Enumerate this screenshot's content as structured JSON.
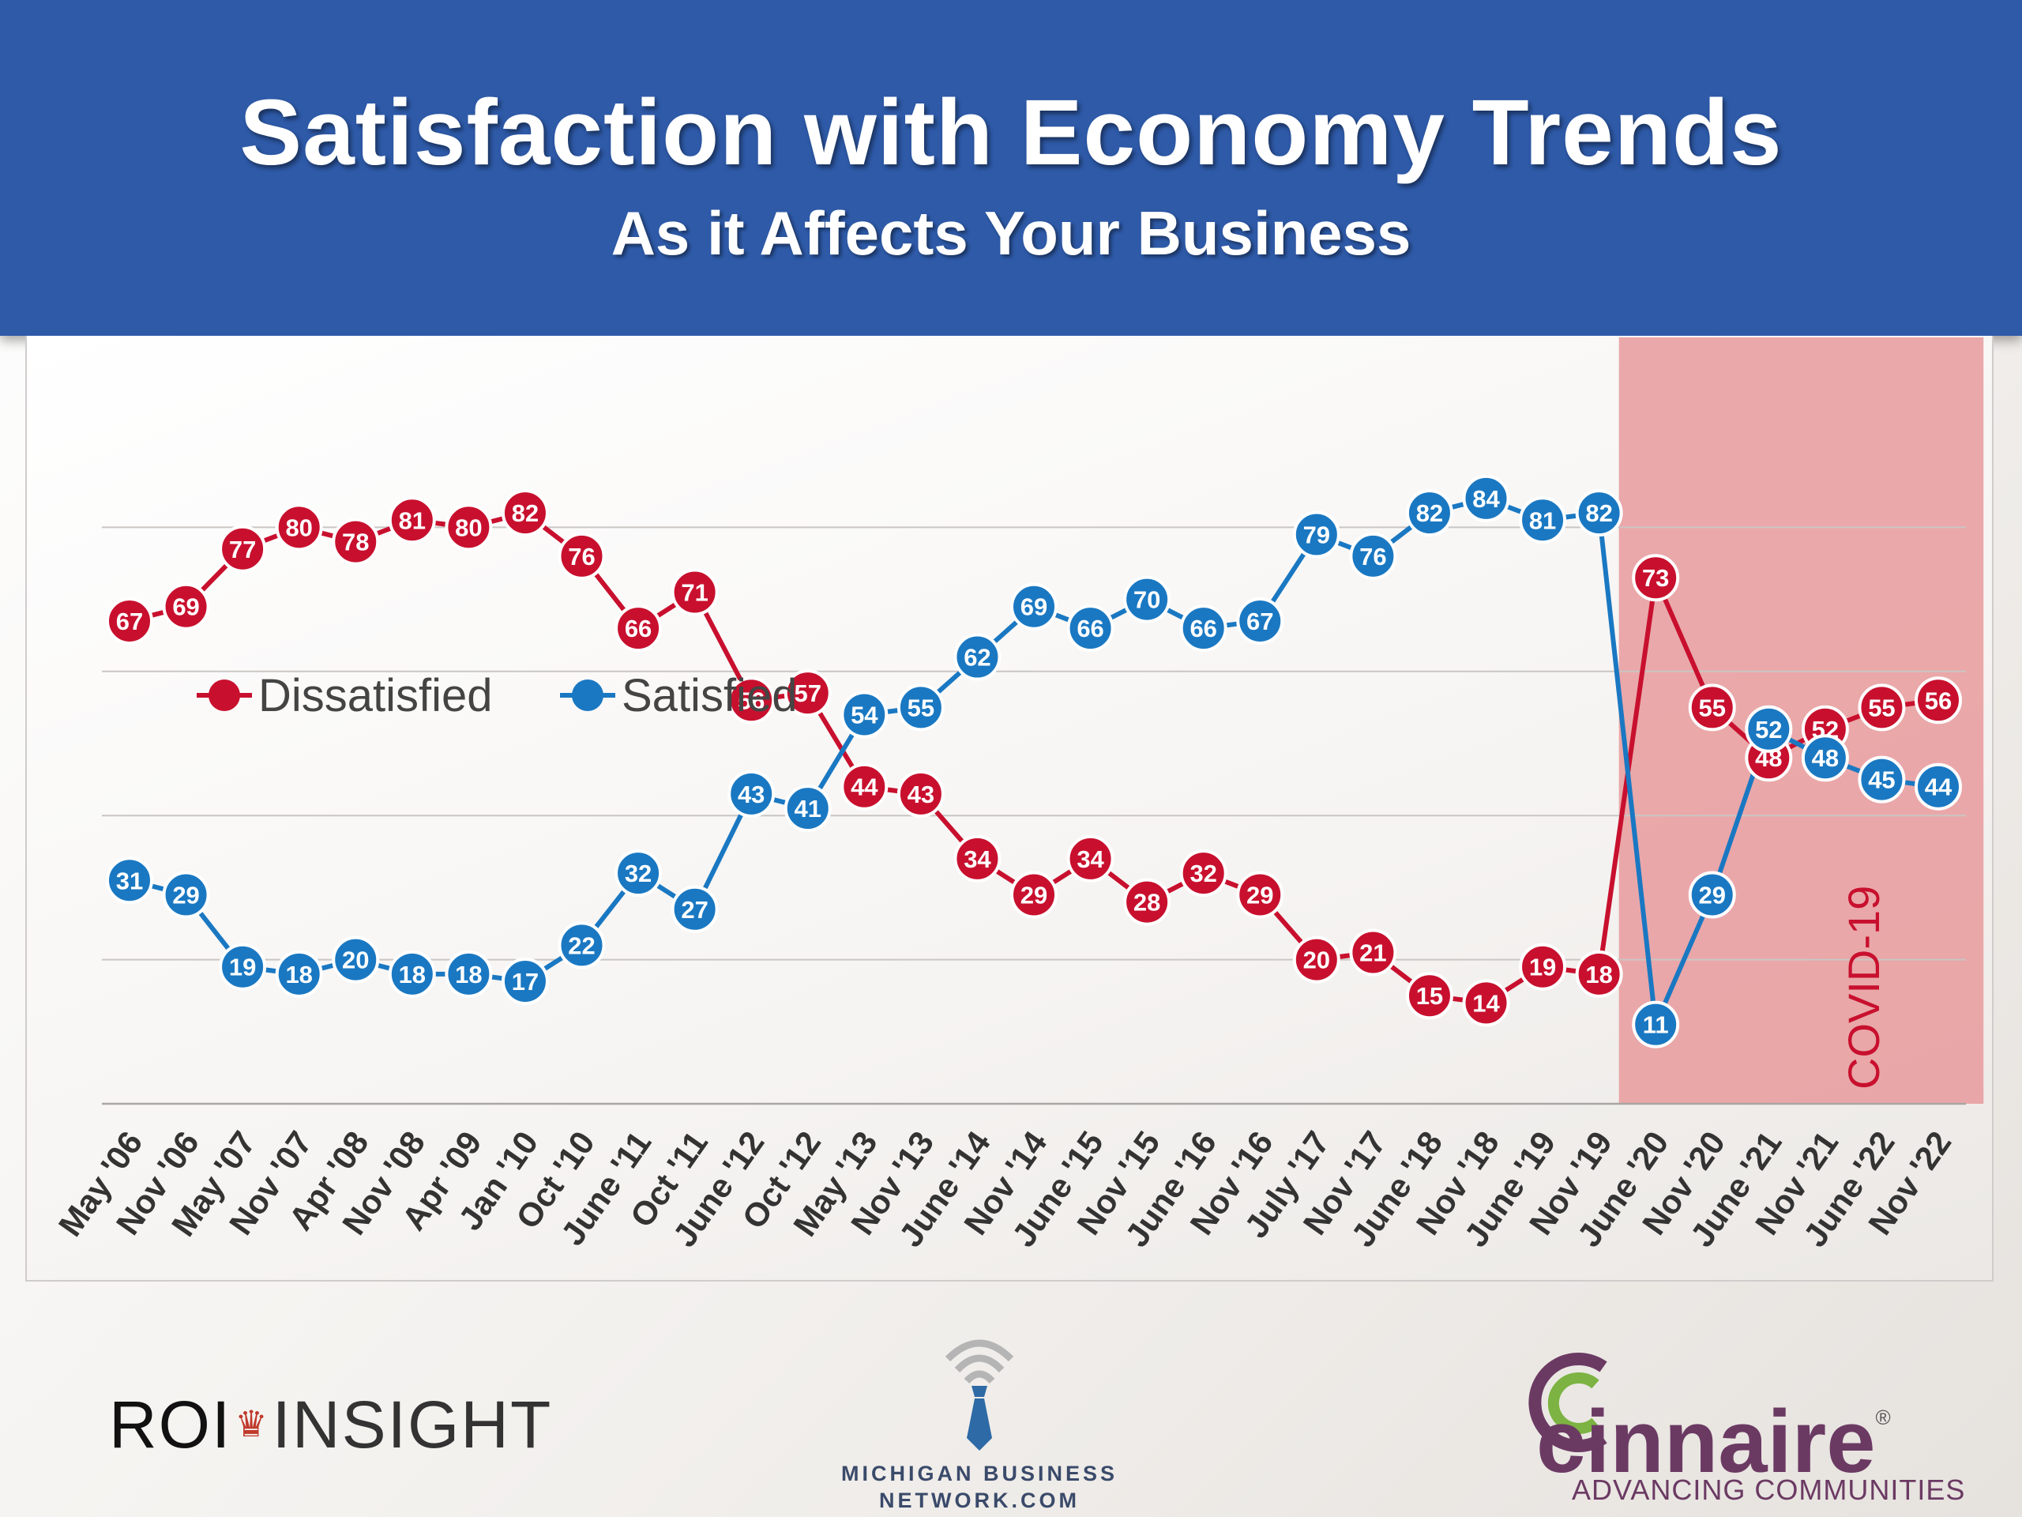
{
  "header": {
    "title": "Satisfaction with Economy Trends",
    "subtitle": "As it Affects Your Business"
  },
  "chart_data": {
    "type": "line",
    "title": "Satisfaction with Economy Trends",
    "subtitle": "As it Affects Your Business",
    "xlabel": "",
    "ylabel": "",
    "ylim": [
      0,
      100
    ],
    "grid": true,
    "legend_position": "middle-left",
    "categories": [
      "May '06",
      "Nov '06",
      "May '07",
      "Nov '07",
      "Apr '08",
      "Nov '08",
      "Apr '09",
      "Jan '10",
      "Oct '10",
      "June '11",
      "Oct '11",
      "June '12",
      "Oct '12",
      "May '13",
      "Nov '13",
      "June '14",
      "Nov '14",
      "June '15",
      "Nov '15",
      "June '16",
      "Nov '16",
      "July '17",
      "Nov '17",
      "June '18",
      "Nov '18",
      "June '19",
      "Nov '19",
      "June '20",
      "Nov '20",
      "June '21",
      "Nov '21",
      "June '22",
      "Nov '22"
    ],
    "series": [
      {
        "name": "Dissatisfied",
        "color": "#c8102e",
        "values": [
          67,
          69,
          77,
          80,
          78,
          81,
          80,
          82,
          76,
          66,
          71,
          56,
          57,
          44,
          43,
          34,
          29,
          34,
          28,
          32,
          29,
          20,
          21,
          15,
          14,
          19,
          18,
          73,
          55,
          48,
          52,
          55,
          56
        ]
      },
      {
        "name": "Satisfied",
        "color": "#1a78c2",
        "values": [
          31,
          29,
          19,
          18,
          20,
          18,
          18,
          17,
          22,
          32,
          27,
          43,
          41,
          54,
          55,
          62,
          69,
          66,
          70,
          66,
          67,
          79,
          76,
          82,
          84,
          81,
          82,
          11,
          29,
          52,
          48,
          45,
          44
        ]
      }
    ],
    "annotations": [
      {
        "text": "COVID-19",
        "color": "#c8102e",
        "span_start": "June '20",
        "span_end": "Nov '22"
      }
    ],
    "covid_band_color": "#e89a9c"
  },
  "logos": {
    "roi_left": "ROI",
    "roi_right": "INSIGHT",
    "mbn_line1": "MICHIGAN BUSINESS",
    "mbn_line2": "NETWORK.COM",
    "cinnaire_name": "cinnaire",
    "cinnaire_tagline": "ADVANCING COMMUNITIES",
    "cinnaire_reg": "®"
  }
}
